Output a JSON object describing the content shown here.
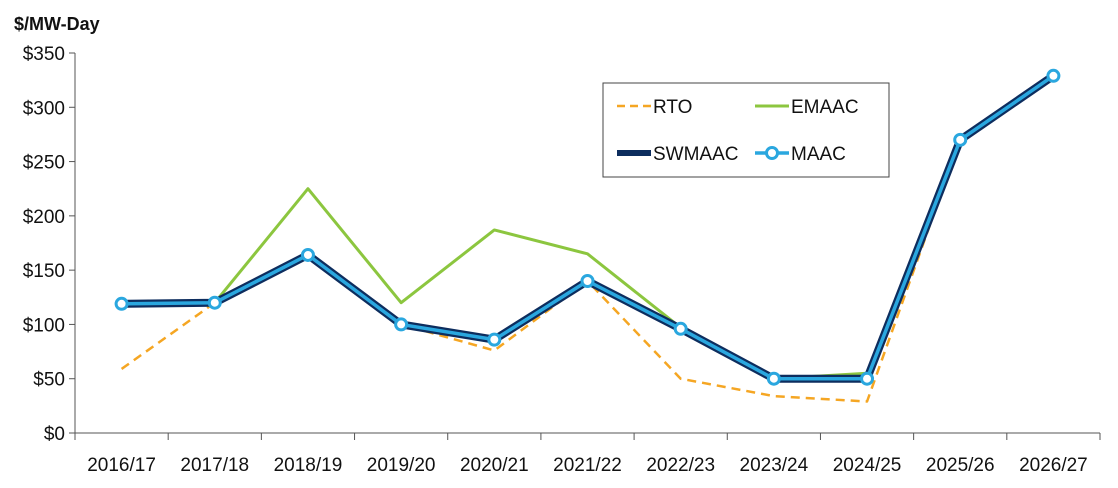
{
  "chart_data": {
    "type": "line",
    "title": "",
    "xlabel": "",
    "ylabel": "$/MW-Day",
    "ylim": [
      0,
      350
    ],
    "yticks": [
      0,
      50,
      100,
      150,
      200,
      250,
      300,
      350
    ],
    "ytick_labels": [
      "$0",
      "$50",
      "$100",
      "$150",
      "$200",
      "$250",
      "$300",
      "$350"
    ],
    "categories": [
      "2016/17",
      "2017/18",
      "2018/19",
      "2019/20",
      "2020/21",
      "2021/22",
      "2022/23",
      "2023/24",
      "2024/25",
      "2025/26",
      "2026/27"
    ],
    "grid": false,
    "legend_position": "top-right",
    "series": [
      {
        "name": "RTO",
        "color": "#f5a623",
        "style": "dashed",
        "values": [
          59,
          120,
          164,
          100,
          76,
          140,
          50,
          34,
          29,
          270,
          329
        ]
      },
      {
        "name": "EMAAC",
        "color": "#8cc63f",
        "style": "solid",
        "values": [
          119,
          120,
          225,
          120,
          187,
          165,
          97,
          50,
          55,
          270,
          329
        ]
      },
      {
        "name": "SWMAAC",
        "color": "#0d2d5e",
        "style": "solid-thick",
        "values": [
          119,
          120,
          164,
          100,
          86,
          140,
          96,
          50,
          50,
          270,
          329
        ]
      },
      {
        "name": "MAAC",
        "color": "#2aa7df",
        "style": "solid-markers",
        "values": [
          119,
          120,
          164,
          100,
          86,
          140,
          96,
          50,
          50,
          270,
          329
        ]
      }
    ]
  }
}
